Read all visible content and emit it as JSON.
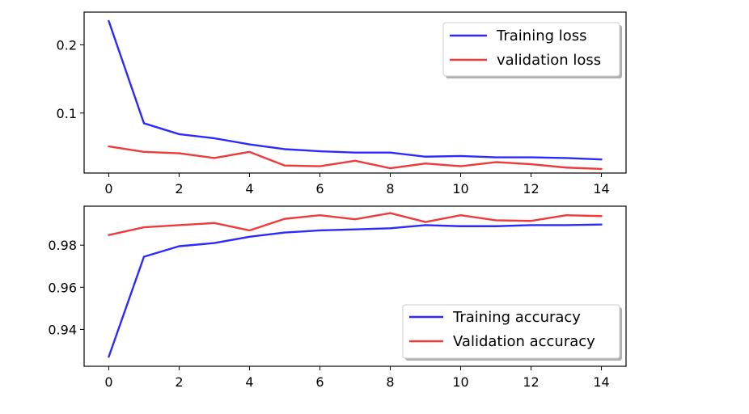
{
  "chart_data": [
    {
      "type": "line",
      "title": "",
      "xlabel": "",
      "ylabel": "",
      "xlim": [
        -0.7,
        14.7
      ],
      "ylim": [
        0.012,
        0.248
      ],
      "x": [
        0,
        1,
        2,
        3,
        4,
        5,
        6,
        7,
        8,
        9,
        10,
        11,
        12,
        13,
        14
      ],
      "x_ticks": [
        0,
        2,
        4,
        6,
        8,
        10,
        12,
        14
      ],
      "y_ticks": [
        0.1,
        0.2
      ],
      "y_tick_labels": [
        "0.1",
        "0.2"
      ],
      "legend_position": "top-right",
      "series": [
        {
          "name": "Training loss",
          "color": "#2a2aff",
          "values": [
            0.235,
            0.085,
            0.069,
            0.063,
            0.054,
            0.047,
            0.044,
            0.042,
            0.042,
            0.036,
            0.037,
            0.035,
            0.035,
            0.034,
            0.032
          ]
        },
        {
          "name": "validation loss",
          "color": "#ee3a3a",
          "values": [
            0.051,
            0.043,
            0.041,
            0.034,
            0.043,
            0.023,
            0.022,
            0.03,
            0.019,
            0.026,
            0.022,
            0.028,
            0.025,
            0.02,
            0.018
          ]
        }
      ]
    },
    {
      "type": "line",
      "title": "",
      "xlabel": "",
      "ylabel": "",
      "xlim": [
        -0.7,
        14.7
      ],
      "ylim": [
        0.9225,
        0.9985
      ],
      "x": [
        0,
        1,
        2,
        3,
        4,
        5,
        6,
        7,
        8,
        9,
        10,
        11,
        12,
        13,
        14
      ],
      "x_ticks": [
        0,
        2,
        4,
        6,
        8,
        10,
        12,
        14
      ],
      "y_ticks": [
        0.94,
        0.96,
        0.98
      ],
      "y_tick_labels": [
        "0.94",
        "0.96",
        "0.98"
      ],
      "legend_position": "bottom-right",
      "series": [
        {
          "name": "Training accuracy",
          "color": "#2a2aff",
          "values": [
            0.927,
            0.9745,
            0.9795,
            0.981,
            0.984,
            0.986,
            0.987,
            0.9875,
            0.988,
            0.9895,
            0.989,
            0.989,
            0.9895,
            0.9895,
            0.9898
          ]
        },
        {
          "name": "Validation accuracy",
          "color": "#ee3a3a",
          "values": [
            0.9848,
            0.9885,
            0.9895,
            0.9905,
            0.987,
            0.9925,
            0.9942,
            0.9923,
            0.9952,
            0.991,
            0.9942,
            0.9918,
            0.9915,
            0.9942,
            0.9938
          ]
        }
      ]
    }
  ]
}
